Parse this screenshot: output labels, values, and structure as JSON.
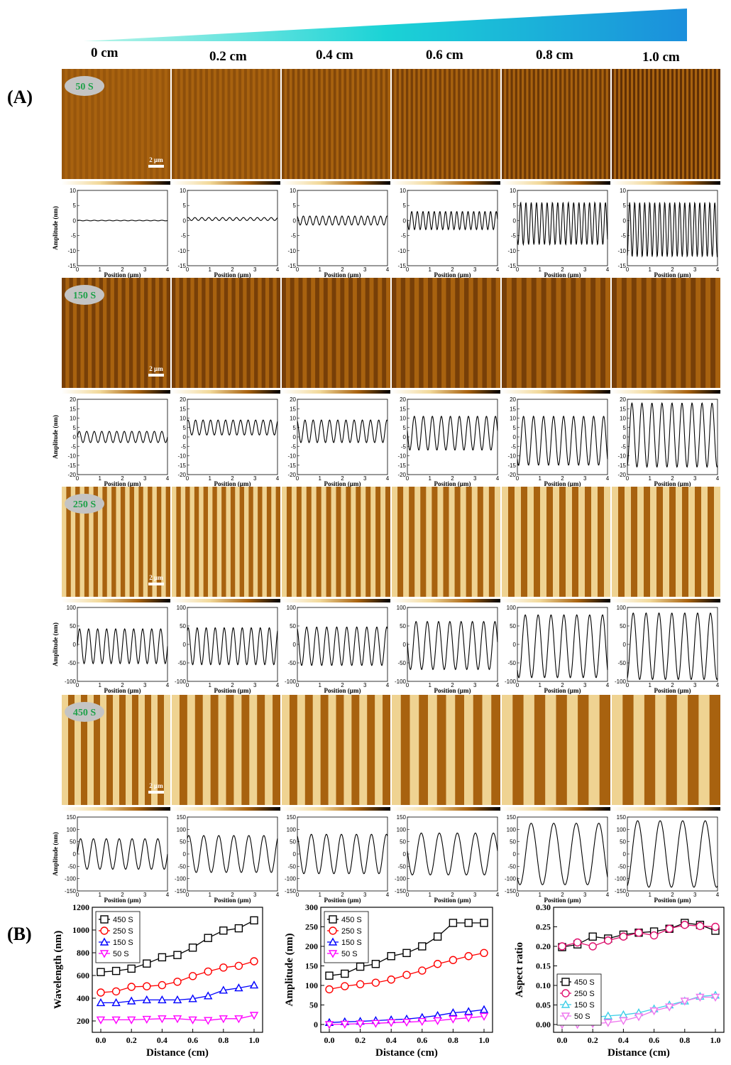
{
  "panel_labels": {
    "a": "(A)",
    "b": "(B)"
  },
  "distances": [
    "0 cm",
    "0.2 cm",
    "0.4 cm",
    "0.6 cm",
    "0.8 cm",
    "1.0 cm"
  ],
  "scale_bar": "2 µm",
  "colors": {
    "gradient_start": "#b8f5e8",
    "gradient_mid": "#1bd3d6",
    "gradient_end": "#1b8fdc",
    "afm_dark": "#3b1600",
    "afm_mid": "#a8620f",
    "afm_light": "#f2d99a",
    "badge_bg": "#c4c4c4",
    "badge_text": "#1fa14a",
    "s450": "#000000",
    "s250": "#ff0000",
    "s150": "#0000ff",
    "s50": "#ff00ff",
    "c450": "#000000",
    "c250": "#e0106e",
    "c150": "#3fd0e8",
    "c50": "#ee77ee"
  },
  "rows": [
    {
      "label": "50 S",
      "yticks": [
        "5",
        "0",
        "-5",
        "-10",
        "-15"
      ],
      "ymin": -15,
      "ymax": 10,
      "ytick_values": [
        10,
        5,
        0,
        -5,
        -10,
        -15
      ],
      "profiles": [
        {
          "amp": 0.1,
          "offset": 0,
          "cycles": 12
        },
        {
          "amp": 0.5,
          "offset": 0.5,
          "cycles": 13
        },
        {
          "amp": 1.5,
          "offset": 0,
          "cycles": 14
        },
        {
          "amp": 3,
          "offset": 0,
          "cycles": 16
        },
        {
          "amp": 7,
          "offset": -1,
          "cycles": 17
        },
        {
          "amp": 9,
          "offset": -3,
          "cycles": 18
        }
      ]
    },
    {
      "label": "150 S",
      "ymin": -20,
      "ymax": 20,
      "ytick_values": [
        20,
        15,
        10,
        5,
        0,
        -5,
        -10,
        -15,
        -20
      ],
      "profiles": [
        {
          "amp": 3,
          "offset": 0,
          "cycles": 12
        },
        {
          "amp": 4,
          "offset": 5,
          "cycles": 12
        },
        {
          "amp": 6,
          "offset": 3,
          "cycles": 11
        },
        {
          "amp": 9,
          "offset": 2,
          "cycles": 10
        },
        {
          "amp": 13,
          "offset": -2,
          "cycles": 9
        },
        {
          "amp": 17,
          "offset": 1,
          "cycles": 9
        }
      ]
    },
    {
      "label": "250 S",
      "ymin": -100,
      "ymax": 100,
      "ytick_values": [
        100,
        50,
        0,
        -50,
        -100
      ],
      "profiles": [
        {
          "amp": 47,
          "offset": -5,
          "cycles": 10
        },
        {
          "amp": 50,
          "offset": -5,
          "cycles": 10
        },
        {
          "amp": 52,
          "offset": -5,
          "cycles": 9
        },
        {
          "amp": 65,
          "offset": -3,
          "cycles": 8
        },
        {
          "amp": 85,
          "offset": -5,
          "cycles": 7
        },
        {
          "amp": 90,
          "offset": -5,
          "cycles": 7
        }
      ]
    },
    {
      "label": "450 S",
      "ymin": -150,
      "ymax": 150,
      "ytick_values": [
        150,
        100,
        50,
        0,
        -50,
        -100,
        -150
      ],
      "profiles": [
        {
          "amp": 62,
          "offset": 0,
          "cycles": 7
        },
        {
          "amp": 75,
          "offset": 0,
          "cycles": 6
        },
        {
          "amp": 80,
          "offset": 0,
          "cycles": 6
        },
        {
          "amp": 85,
          "offset": 0,
          "cycles": 5
        },
        {
          "amp": 125,
          "offset": 0,
          "cycles": 4
        },
        {
          "amp": 135,
          "offset": 0,
          "cycles": 4
        }
      ]
    }
  ],
  "profile_axes": {
    "ylabel": "Amplitude (nm)",
    "xlabel": "Position (µm)",
    "xticks": [
      "0",
      "1",
      "2",
      "3",
      "4"
    ]
  },
  "chart_data": [
    {
      "type": "line",
      "title": "",
      "xlabel": "Distance (cm)",
      "ylabel": "Wavelength (nm)",
      "xlim": [
        0,
        1.0
      ],
      "ylim": [
        100,
        1200
      ],
      "xticks": [
        "0.0",
        "0.2",
        "0.4",
        "0.6",
        "0.8",
        "1.0"
      ],
      "yticks": [
        "200",
        "400",
        "600",
        "800",
        "1000",
        "1200"
      ],
      "ytick_values": [
        200,
        400,
        600,
        800,
        1000,
        1200
      ],
      "xtick_values": [
        0,
        0.2,
        0.4,
        0.6,
        0.8,
        1.0
      ],
      "legend_position": "top-left",
      "x": [
        0.0,
        0.1,
        0.2,
        0.3,
        0.4,
        0.5,
        0.6,
        0.7,
        0.8,
        0.9,
        1.0
      ],
      "series": [
        {
          "name": "450 S",
          "marker": "square",
          "color": "#000000",
          "values": [
            630,
            640,
            660,
            705,
            760,
            780,
            845,
            930,
            995,
            1015,
            1085
          ]
        },
        {
          "name": "250 S",
          "marker": "circle",
          "color": "#ff0000",
          "values": [
            450,
            460,
            500,
            505,
            515,
            545,
            595,
            635,
            670,
            685,
            725
          ]
        },
        {
          "name": "150 S",
          "marker": "triangle",
          "color": "#0000ff",
          "values": [
            360,
            360,
            375,
            385,
            385,
            385,
            395,
            420,
            470,
            490,
            515
          ]
        },
        {
          "name": "50 S",
          "marker": "down-triangle",
          "color": "#ff00ff",
          "values": [
            210,
            210,
            210,
            215,
            220,
            220,
            210,
            205,
            220,
            220,
            250
          ]
        }
      ]
    },
    {
      "type": "line",
      "title": "",
      "xlabel": "Distance (cm)",
      "ylabel": "Amplitude (nm)",
      "xlim": [
        0,
        1.0
      ],
      "ylim": [
        -20,
        300
      ],
      "xticks": [
        "0.0",
        "0.2",
        "0.4",
        "0.6",
        "0.8",
        "1.0"
      ],
      "yticks": [
        "0",
        "50",
        "100",
        "150",
        "200",
        "250",
        "300"
      ],
      "ytick_values": [
        0,
        50,
        100,
        150,
        200,
        250,
        300
      ],
      "xtick_values": [
        0,
        0.2,
        0.4,
        0.6,
        0.8,
        1.0
      ],
      "legend_position": "top-left",
      "x": [
        0.0,
        0.1,
        0.2,
        0.3,
        0.4,
        0.5,
        0.6,
        0.7,
        0.8,
        0.9,
        1.0
      ],
      "series": [
        {
          "name": "450 S",
          "marker": "square",
          "color": "#000000",
          "values": [
            125,
            130,
            148,
            155,
            175,
            183,
            200,
            225,
            260,
            260,
            260
          ]
        },
        {
          "name": "250 S",
          "marker": "circle",
          "color": "#ff0000",
          "values": [
            90,
            98,
            103,
            107,
            115,
            127,
            138,
            155,
            165,
            175,
            183
          ]
        },
        {
          "name": "150 S",
          "marker": "triangle",
          "color": "#0000ff",
          "values": [
            5,
            7,
            8,
            10,
            12,
            14,
            18,
            23,
            30,
            33,
            38
          ]
        },
        {
          "name": "50 S",
          "marker": "down-triangle",
          "color": "#ff00ff",
          "values": [
            0,
            1,
            2,
            3,
            5,
            6,
            8,
            10,
            14,
            17,
            21
          ]
        }
      ]
    },
    {
      "type": "line",
      "title": "",
      "xlabel": "Distance (cm)",
      "ylabel": "Aspect ratio",
      "xlim": [
        0,
        1.0
      ],
      "ylim": [
        -0.02,
        0.3
      ],
      "xticks": [
        "0.0",
        "0.2",
        "0.4",
        "0.6",
        "0.8",
        "1.0"
      ],
      "yticks": [
        "0.00",
        "0.05",
        "0.10",
        "0.15",
        "0.20",
        "0.25",
        "0.30"
      ],
      "ytick_values": [
        0,
        0.05,
        0.1,
        0.15,
        0.2,
        0.25,
        0.3
      ],
      "xtick_values": [
        0,
        0.2,
        0.4,
        0.6,
        0.8,
        1.0
      ],
      "legend_position": "bottom-left",
      "x": [
        0.0,
        0.1,
        0.2,
        0.3,
        0.4,
        0.5,
        0.6,
        0.7,
        0.8,
        0.9,
        1.0
      ],
      "series": [
        {
          "name": "450 S",
          "marker": "square",
          "color": "#000000",
          "values": [
            0.198,
            0.205,
            0.225,
            0.22,
            0.23,
            0.235,
            0.238,
            0.245,
            0.26,
            0.255,
            0.24
          ]
        },
        {
          "name": "250 S",
          "marker": "circle",
          "color": "#e0106e",
          "values": [
            0.2,
            0.21,
            0.2,
            0.215,
            0.225,
            0.235,
            0.228,
            0.245,
            0.255,
            0.252,
            0.25
          ]
        },
        {
          "name": "150 S",
          "marker": "triangle",
          "color": "#3fd0e8",
          "values": [
            0.015,
            0.017,
            0.018,
            0.022,
            0.025,
            0.03,
            0.04,
            0.05,
            0.06,
            0.072,
            0.075
          ]
        },
        {
          "name": "50 S",
          "marker": "down-triangle",
          "color": "#ee77ee",
          "values": [
            0.0,
            0.0,
            0.002,
            0.005,
            0.01,
            0.02,
            0.035,
            0.045,
            0.06,
            0.07,
            0.07
          ]
        }
      ]
    }
  ]
}
